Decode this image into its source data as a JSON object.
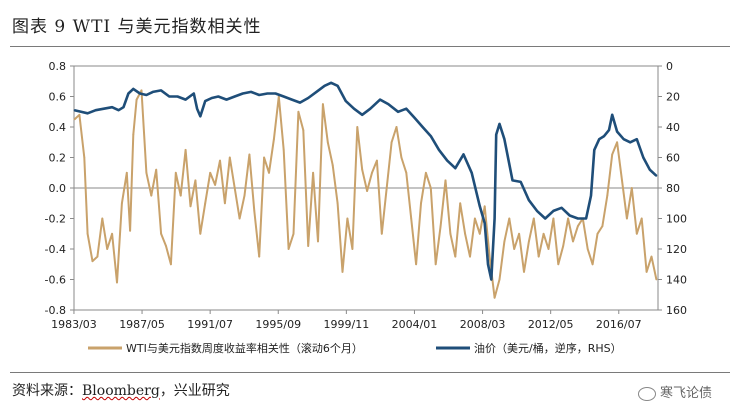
{
  "figure_title": "图表 9    WTI 与美元指数相关性",
  "source_prefix": "资料来源：",
  "source_brand": "Bloomberg",
  "source_suffix": "，兴业研究",
  "watermark": "寒飞论债",
  "chart_data": {
    "type": "line",
    "x_ticks": [
      "1983/03",
      "1987/05",
      "1991/07",
      "1995/09",
      "1999/11",
      "2004/01",
      "2008/03",
      "2012/05",
      "2016/07"
    ],
    "x_range": [
      1983.17,
      2018.9
    ],
    "left_axis": {
      "ylim": [
        -0.8,
        0.8
      ],
      "ticks": [
        "0.8",
        "0.6",
        "0.4",
        "0.2",
        "0.0",
        "-0.2",
        "-0.4",
        "-0.6",
        "-0.8"
      ]
    },
    "right_axis": {
      "ylim": [
        0,
        160
      ],
      "inverted": true,
      "ticks": [
        "0",
        "20",
        "40",
        "60",
        "80",
        "100",
        "120",
        "140",
        "160"
      ]
    },
    "legend_position": "bottom",
    "colors": {
      "correlation": "#c9a26b",
      "oil": "#1f4e79"
    },
    "series": [
      {
        "name": "WTI与美元指数周度收益率相关性（滚动6个月）",
        "axis": "left",
        "x": [
          1983.2,
          1983.5,
          1983.8,
          1984.0,
          1984.3,
          1984.6,
          1984.9,
          1985.2,
          1985.5,
          1985.8,
          1986.1,
          1986.4,
          1986.6,
          1986.8,
          1987.0,
          1987.3,
          1987.6,
          1987.9,
          1988.2,
          1988.5,
          1988.8,
          1989.1,
          1989.4,
          1989.7,
          1990.0,
          1990.3,
          1990.6,
          1990.9,
          1991.2,
          1991.5,
          1991.8,
          1992.1,
          1992.4,
          1992.7,
          1993.0,
          1993.3,
          1993.6,
          1993.9,
          1994.2,
          1994.5,
          1994.8,
          1995.1,
          1995.4,
          1995.7,
          1996.0,
          1996.3,
          1996.6,
          1996.9,
          1997.2,
          1997.5,
          1997.8,
          1998.1,
          1998.4,
          1998.7,
          1999.0,
          1999.3,
          1999.6,
          1999.9,
          2000.2,
          2000.5,
          2000.8,
          2001.1,
          2001.4,
          2001.7,
          2002.0,
          2002.3,
          2002.6,
          2002.9,
          2003.2,
          2003.5,
          2003.8,
          2004.1,
          2004.4,
          2004.7,
          2005.0,
          2005.3,
          2005.6,
          2005.9,
          2006.2,
          2006.5,
          2006.8,
          2007.1,
          2007.4,
          2007.7,
          2008.0,
          2008.3,
          2008.6,
          2008.9,
          2009.2,
          2009.5,
          2009.8,
          2010.1,
          2010.4,
          2010.7,
          2011.0,
          2011.3,
          2011.6,
          2011.9,
          2012.2,
          2012.5,
          2012.8,
          2013.1,
          2013.4,
          2013.7,
          2014.0,
          2014.3,
          2014.6,
          2014.9,
          2015.2,
          2015.5,
          2015.8,
          2016.1,
          2016.4,
          2016.7,
          2017.0,
          2017.3,
          2017.6,
          2017.9,
          2018.2,
          2018.5,
          2018.8
        ],
        "values": [
          0.45,
          0.48,
          0.2,
          -0.3,
          -0.48,
          -0.45,
          -0.2,
          -0.4,
          -0.3,
          -0.62,
          -0.1,
          0.1,
          -0.28,
          0.35,
          0.58,
          0.64,
          0.1,
          -0.05,
          0.12,
          -0.3,
          -0.38,
          -0.5,
          0.1,
          -0.05,
          0.25,
          -0.12,
          0.05,
          -0.3,
          -0.1,
          0.1,
          0.02,
          0.18,
          -0.1,
          0.2,
          0.0,
          -0.2,
          -0.05,
          0.22,
          -0.15,
          -0.45,
          0.2,
          0.1,
          0.32,
          0.6,
          0.25,
          -0.4,
          -0.3,
          0.5,
          0.38,
          -0.38,
          0.1,
          -0.35,
          0.55,
          0.3,
          0.15,
          -0.1,
          -0.55,
          -0.2,
          -0.4,
          0.4,
          0.12,
          -0.02,
          0.1,
          0.18,
          -0.3,
          0.0,
          0.3,
          0.4,
          0.2,
          0.1,
          -0.2,
          -0.5,
          -0.1,
          0.1,
          0.0,
          -0.5,
          -0.25,
          0.05,
          -0.3,
          -0.45,
          -0.1,
          -0.3,
          -0.45,
          -0.2,
          -0.3,
          -0.12,
          -0.45,
          -0.72,
          -0.6,
          -0.35,
          -0.2,
          -0.4,
          -0.3,
          -0.55,
          -0.35,
          -0.2,
          -0.45,
          -0.3,
          -0.4,
          -0.2,
          -0.5,
          -0.38,
          -0.2,
          -0.35,
          -0.25,
          -0.2,
          -0.4,
          -0.5,
          -0.3,
          -0.25,
          -0.05,
          0.22,
          0.3,
          0.05,
          -0.2,
          0.0,
          -0.3,
          -0.2,
          -0.55,
          -0.45,
          -0.6
        ]
      },
      {
        "name": "油价（美元/桶，逆序，RHS）",
        "axis": "right",
        "x": [
          1983.2,
          1983.6,
          1984.0,
          1984.5,
          1985.0,
          1985.5,
          1985.9,
          1986.2,
          1986.5,
          1986.8,
          1987.2,
          1987.6,
          1988.0,
          1988.5,
          1989.0,
          1989.5,
          1990.0,
          1990.5,
          1990.7,
          1990.9,
          1991.2,
          1991.6,
          1992.0,
          1992.5,
          1993.0,
          1993.5,
          1994.0,
          1994.5,
          1995.0,
          1995.5,
          1996.0,
          1996.5,
          1997.0,
          1997.5,
          1998.0,
          1998.5,
          1998.9,
          1999.3,
          1999.8,
          2000.3,
          2000.8,
          2001.3,
          2001.9,
          2002.4,
          2003.0,
          2003.5,
          2004.0,
          2004.5,
          2005.0,
          2005.5,
          2006.0,
          2006.5,
          2007.0,
          2007.5,
          2008.0,
          2008.3,
          2008.5,
          2008.7,
          2008.9,
          2009.0,
          2009.2,
          2009.5,
          2010.0,
          2010.5,
          2011.0,
          2011.5,
          2012.0,
          2012.5,
          2013.0,
          2013.5,
          2014.0,
          2014.5,
          2014.8,
          2015.0,
          2015.3,
          2015.6,
          2015.9,
          2016.1,
          2016.4,
          2016.8,
          2017.2,
          2017.6,
          2018.0,
          2018.4,
          2018.8
        ],
        "values": [
          29,
          30,
          31,
          29,
          28,
          27,
          29,
          27,
          18,
          15,
          18,
          19,
          17,
          16,
          20,
          20,
          22,
          18,
          28,
          33,
          23,
          21,
          20,
          22,
          20,
          18,
          17,
          19,
          18,
          18,
          20,
          22,
          24,
          21,
          17,
          13,
          11,
          13,
          23,
          28,
          32,
          28,
          22,
          25,
          30,
          28,
          34,
          40,
          46,
          55,
          62,
          67,
          58,
          70,
          92,
          103,
          130,
          140,
          100,
          45,
          38,
          48,
          75,
          76,
          88,
          95,
          100,
          95,
          93,
          98,
          100,
          100,
          85,
          55,
          48,
          46,
          42,
          32,
          43,
          48,
          50,
          48,
          60,
          68,
          72
        ]
      }
    ]
  }
}
